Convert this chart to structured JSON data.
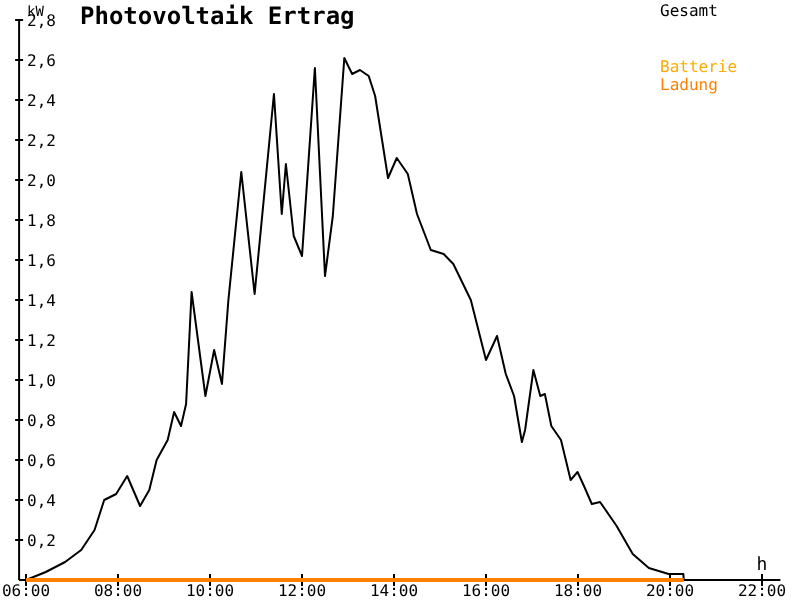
{
  "chart_data": {
    "type": "line",
    "title": "Photovoltaik Ertrag",
    "xlabel": "h",
    "ylabel": "kW",
    "xlim": [
      5.85,
      22.4
    ],
    "xticks": [
      {
        "value": 6,
        "label": "06:00"
      },
      {
        "value": 8,
        "label": "08:00"
      },
      {
        "value": 10,
        "label": "10:00"
      },
      {
        "value": 12,
        "label": "12:00"
      },
      {
        "value": 14,
        "label": "14:00"
      },
      {
        "value": 16,
        "label": "16:00"
      },
      {
        "value": 18,
        "label": "18:00"
      },
      {
        "value": 20,
        "label": "20:00"
      },
      {
        "value": 22,
        "label": "22:00"
      }
    ],
    "ylim": [
      0,
      2.8
    ],
    "yticks": [
      {
        "value": 0.2,
        "label": "0,2"
      },
      {
        "value": 0.4,
        "label": "0,4"
      },
      {
        "value": 0.6,
        "label": "0,6"
      },
      {
        "value": 0.8,
        "label": "0,8"
      },
      {
        "value": 1,
        "label": "1,0"
      },
      {
        "value": 1.2,
        "label": "1,2"
      },
      {
        "value": 1.4,
        "label": "1,4"
      },
      {
        "value": 1.6,
        "label": "1,6"
      },
      {
        "value": 1.8,
        "label": "1,8"
      },
      {
        "value": 2,
        "label": "2,0"
      },
      {
        "value": 2.2,
        "label": "2,2"
      },
      {
        "value": 2.4,
        "label": "2,4"
      },
      {
        "value": 2.6,
        "label": "2,6"
      },
      {
        "value": 2.8,
        "label": "2,8"
      }
    ],
    "grid": false,
    "legend": "top right",
    "marker": "none",
    "line_style": "solid",
    "series": [
      {
        "name": "Gesamt",
        "color": "#000000",
        "x": [
          6,
          6.43,
          6.85,
          7.2,
          7.49,
          7.7,
          7.96,
          8.2,
          8.48,
          8.68,
          8.84,
          9.08,
          9.22,
          9.37,
          9.48,
          9.57,
          9.6,
          9.9,
          10.09,
          10.26,
          10.4,
          10.68,
          10.97,
          11.39,
          11.56,
          11.65,
          11.82,
          12.0,
          12.28,
          12.5,
          12.67,
          12.92,
          13.09,
          13.26,
          13.45,
          13.59,
          13.87,
          14.06,
          14.3,
          14.5,
          14.8,
          15.08,
          15.29,
          15.67,
          16.0,
          16.24,
          16.43,
          16.61,
          16.78,
          16.85,
          17.03,
          17.18,
          17.28,
          17.42,
          17.63,
          17.84,
          17.99,
          18.13,
          18.3,
          18.48,
          18.84,
          19.19,
          19.54,
          19.97,
          20.29,
          20.3
        ],
        "values": [
          0,
          0.04,
          0.09,
          0.15,
          0.25,
          0.4,
          0.43,
          0.52,
          0.37,
          0.45,
          0.6,
          0.7,
          0.84,
          0.77,
          0.88,
          1.3,
          1.44,
          0.92,
          1.15,
          0.98,
          1.4,
          2.04,
          1.43,
          2.43,
          1.83,
          2.08,
          1.72,
          1.62,
          2.56,
          1.52,
          1.82,
          2.61,
          2.53,
          2.55,
          2.52,
          2.42,
          2.01,
          2.11,
          2.03,
          1.83,
          1.65,
          1.63,
          1.58,
          1.4,
          1.1,
          1.22,
          1.03,
          0.92,
          0.69,
          0.75,
          1.05,
          0.92,
          0.93,
          0.77,
          0.7,
          0.5,
          0.54,
          0.47,
          0.38,
          0.39,
          0.27,
          0.13,
          0.06,
          0.03,
          0.03,
          0
        ]
      },
      {
        "name": "Batterie",
        "color": "#ffaa00"
      },
      {
        "name": "Ladung",
        "color": "#ff8000",
        "x": [
          6,
          20.3
        ],
        "values": [
          0,
          0
        ]
      }
    ]
  }
}
